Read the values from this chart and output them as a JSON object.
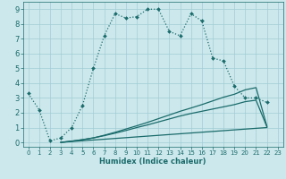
{
  "xlabel": "Humidex (Indice chaleur)",
  "bg_color": "#cce8ec",
  "grid_color": "#a0cdd4",
  "line_color": "#1a6b6b",
  "xlim": [
    -0.5,
    23.5
  ],
  "ylim": [
    -0.3,
    9.5
  ],
  "xticks": [
    0,
    1,
    2,
    3,
    4,
    5,
    6,
    7,
    8,
    9,
    10,
    11,
    12,
    13,
    14,
    15,
    16,
    17,
    18,
    19,
    20,
    21,
    22,
    23
  ],
  "yticks": [
    0,
    1,
    2,
    3,
    4,
    5,
    6,
    7,
    8,
    9
  ],
  "line1_x": [
    0,
    1,
    2,
    3,
    4,
    5,
    6,
    7,
    8,
    9,
    10,
    11,
    12,
    13,
    14,
    15,
    16,
    17,
    18,
    19,
    20,
    21,
    22
  ],
  "line1_y": [
    3.3,
    2.2,
    0.1,
    0.3,
    1.0,
    2.5,
    5.0,
    7.2,
    8.7,
    8.4,
    8.5,
    9.0,
    9.0,
    7.5,
    7.2,
    8.7,
    8.2,
    5.7,
    5.5,
    3.8,
    3.0,
    3.0,
    2.7
  ],
  "line2_x": [
    3,
    22
  ],
  "line2_y": [
    0.0,
    1.0
  ],
  "line3_x": [
    3,
    4,
    5,
    6,
    7,
    8,
    9,
    10,
    11,
    12,
    13,
    14,
    15,
    16,
    17,
    18,
    19,
    20,
    21,
    22
  ],
  "line3_y": [
    0.0,
    0.08,
    0.18,
    0.3,
    0.45,
    0.62,
    0.8,
    1.0,
    1.18,
    1.38,
    1.58,
    1.78,
    1.95,
    2.1,
    2.25,
    2.4,
    2.55,
    2.75,
    2.85,
    1.05
  ],
  "line4_x": [
    3,
    4,
    5,
    6,
    7,
    8,
    9,
    10,
    11,
    12,
    13,
    14,
    15,
    16,
    17,
    18,
    19,
    20,
    21,
    22
  ],
  "line4_y": [
    0.0,
    0.08,
    0.18,
    0.3,
    0.48,
    0.68,
    0.9,
    1.12,
    1.35,
    1.6,
    1.85,
    2.1,
    2.32,
    2.55,
    2.8,
    3.05,
    3.25,
    3.55,
    3.7,
    1.1
  ]
}
